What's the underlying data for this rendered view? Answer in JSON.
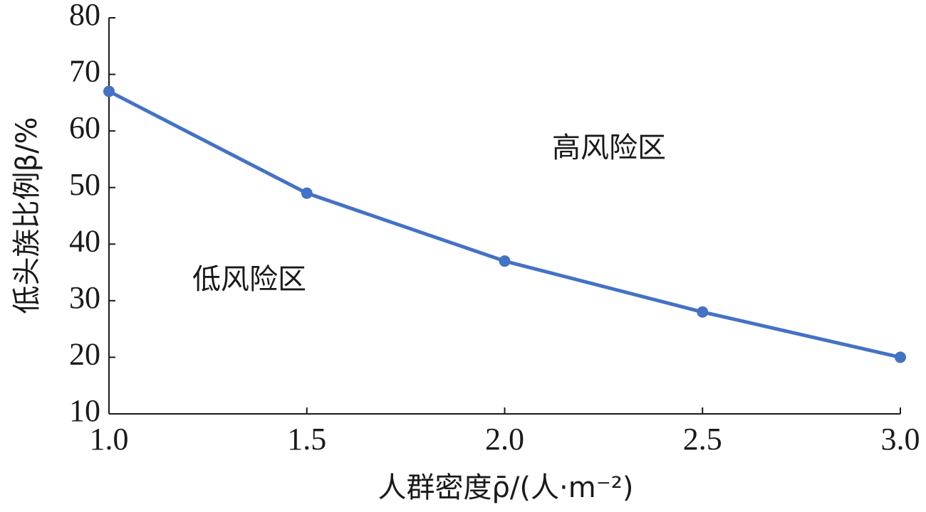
{
  "chart_data": {
    "type": "line",
    "x": [
      1.0,
      1.5,
      2.0,
      2.5,
      3.0
    ],
    "values": [
      67,
      49,
      37,
      28,
      20
    ],
    "color": "#4472c4",
    "xlabel": "人群密度ρ̄/(人·m⁻²)",
    "ylabel": "低头族比例β/%",
    "xlim": [
      1,
      3
    ],
    "ylim": [
      10,
      80
    ],
    "xticks": [
      {
        "value": 1,
        "label": "1.0"
      },
      1.5,
      {
        "value": 2,
        "label": "2.0"
      },
      2.5,
      {
        "value": 3,
        "label": "3.0"
      }
    ],
    "yticks": [
      10,
      20,
      30,
      40,
      50,
      60,
      70,
      80
    ],
    "annotations": [
      "高风险区",
      "低风险区"
    ]
  }
}
